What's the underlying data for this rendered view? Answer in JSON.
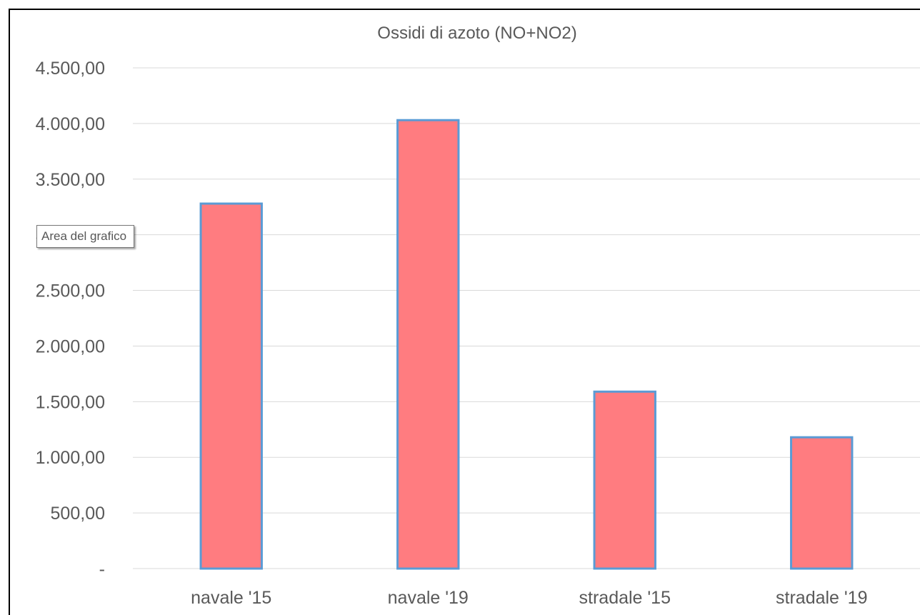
{
  "chart_data": {
    "type": "bar",
    "title": "Ossidi di azoto (NO+NO2)",
    "xlabel": "",
    "ylabel": "",
    "categories": [
      "navale '15",
      "navale '19",
      "stradale '15",
      "stradale '19"
    ],
    "values": [
      3280,
      4030,
      1590,
      1180
    ],
    "ylim": [
      0,
      4500
    ],
    "yticks": [
      0,
      500,
      1000,
      1500,
      2000,
      2500,
      3000,
      3500,
      4000,
      4500
    ],
    "ytick_labels": [
      "-",
      "500,00",
      "1.000,00",
      "1.500,00",
      "2.000,00",
      "2.500,00",
      "3.000,00",
      "3.500,00",
      "4.000,00",
      "4.500,00"
    ],
    "grid": true,
    "legend": "none",
    "colors": {
      "bar_fill": "#FF7C80",
      "bar_stroke": "#5B9BD5",
      "gridline": "#D9D9D9",
      "text": "#595959"
    }
  },
  "tooltip": {
    "text": "Area del grafico"
  }
}
